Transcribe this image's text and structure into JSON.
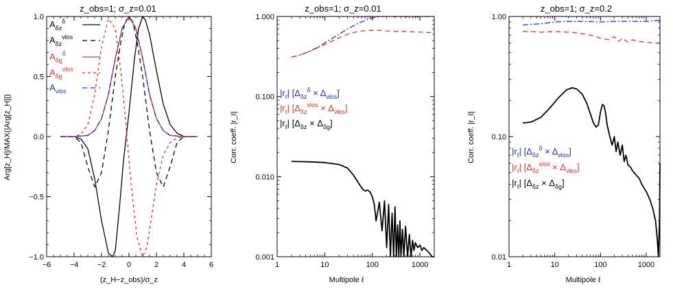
{
  "colors": {
    "black": "#000000",
    "red": "#e8302a",
    "blue": "#1f2bd6"
  },
  "chart_data": [
    {
      "type": "line",
      "title": "z_obs=1; σ_z=0.01",
      "xlabel": "(z_H−z_obs)/σ_z",
      "ylabel": "Arg[z_H]/MAX(|Arg[z_H]|)",
      "xlim": [
        -6,
        6
      ],
      "ylim": [
        -1.0,
        1.0
      ],
      "x_ticks": [
        "−6",
        "−4",
        "−2",
        "0",
        "2",
        "4",
        "6"
      ],
      "y_ticks": [
        "−1.0",
        "−0.5",
        "0.0",
        "0.5",
        "1.0"
      ],
      "legend": [
        "A_δz^δ",
        "A_δz^vlos",
        "A_δg^δ",
        "A_δg^vlos",
        "A_vlos"
      ],
      "series": [
        {
          "name": "A_δz^δ",
          "color": "black",
          "dash": "solid",
          "x": [
            -5,
            -4,
            -3.5,
            -3,
            -2.5,
            -2,
            -1.5,
            -1.2,
            -1,
            -0.7,
            -0.4,
            0,
            0.4,
            0.7,
            1,
            1.2,
            1.5,
            2,
            2.5,
            3,
            3.5,
            4,
            5
          ],
          "y": [
            0,
            0,
            -0.02,
            -0.1,
            -0.35,
            -0.7,
            -0.97,
            -1.0,
            -0.95,
            -0.6,
            -0.2,
            0.2,
            0.65,
            0.9,
            1.0,
            0.97,
            0.85,
            0.55,
            0.27,
            0.1,
            0.03,
            0,
            0
          ]
        },
        {
          "name": "A_δz^vlos",
          "color": "black",
          "dash": "long-dash",
          "x": [
            -5,
            -4,
            -3.5,
            -3,
            -2.5,
            -2,
            -1.5,
            -1,
            -0.6,
            -0.3,
            0,
            0.3,
            0.6,
            1,
            1.5,
            2,
            2.5,
            3,
            3.5,
            4,
            5
          ],
          "y": [
            0,
            0,
            -0.05,
            -0.25,
            -0.42,
            -0.3,
            0.05,
            0.5,
            0.78,
            0.95,
            1.0,
            0.95,
            0.78,
            0.5,
            0.05,
            -0.3,
            -0.42,
            -0.25,
            -0.05,
            0,
            0
          ]
        },
        {
          "name": "A_δg^δ",
          "color": "red",
          "dash": "solid",
          "x": [
            -5,
            -4,
            -3,
            -2.5,
            -2,
            -1.5,
            -1,
            -0.5,
            0,
            0.5,
            1,
            1.5,
            2,
            2.5,
            3,
            4,
            5
          ],
          "y": [
            0,
            0,
            0.01,
            0.05,
            0.15,
            0.35,
            0.65,
            0.9,
            1.0,
            0.9,
            0.65,
            0.35,
            0.15,
            0.05,
            0.01,
            0,
            0
          ]
        },
        {
          "name": "A_δg^vlos",
          "color": "red",
          "dash": "short-dash",
          "x": [
            -5,
            -4,
            -3.5,
            -3,
            -2.5,
            -2,
            -1.5,
            -1,
            -0.6,
            -0.3,
            0,
            0.3,
            0.6,
            1,
            1.3,
            1.6,
            2,
            2.5,
            3,
            3.5,
            4,
            5
          ],
          "y": [
            0,
            0,
            0.02,
            0.1,
            0.35,
            0.75,
            0.98,
            0.9,
            0.55,
            0.2,
            -0.2,
            -0.55,
            -0.85,
            -1.0,
            -0.92,
            -0.7,
            -0.4,
            -0.15,
            -0.05,
            -0.01,
            0,
            0
          ]
        },
        {
          "name": "A_vlos",
          "color": "blue",
          "dash": "long-dash",
          "x": [
            -5,
            -4,
            -3,
            -2.5,
            -2,
            -1.5,
            -1,
            -0.5,
            0,
            0.5,
            1,
            1.5,
            2,
            2.5,
            3,
            4,
            5
          ],
          "y": [
            0,
            0,
            0.01,
            0.05,
            0.15,
            0.35,
            0.65,
            0.9,
            1.0,
            0.9,
            0.65,
            0.35,
            0.15,
            0.05,
            0.01,
            0,
            0
          ]
        }
      ]
    },
    {
      "type": "line",
      "title": "z_obs=1; σ_z=0.01",
      "xlabel": "Multipole ℓ",
      "ylabel": "Corr. coeff. |r_ℓ|",
      "x_scale": "log",
      "y_scale": "log",
      "xlim": [
        1,
        2000
      ],
      "ylim": [
        0.001,
        1.0
      ],
      "x_ticks": [
        "1",
        "10",
        "100",
        "1000"
      ],
      "y_ticks": [
        "0.001",
        "0.010",
        "0.100",
        "1.000"
      ],
      "legend": [
        "|r_ℓ| [Δ_δz^δ × Δ_vlos]",
        "|r_ℓ| [Δ_δz^vlos × Δ_vlos]",
        "|r_ℓ| [Δ_δz × Δ_δg]"
      ],
      "series": [
        {
          "name": "|r_ℓ| [Δ_δz^δ × Δ_vlos]",
          "color": "blue",
          "dash": "dash-dot",
          "x": [
            2,
            3,
            5,
            8,
            12,
            20,
            30,
            50,
            80,
            100,
            150,
            200,
            300,
            500,
            800,
            1000,
            1500,
            2000
          ],
          "y": [
            0.31,
            0.33,
            0.37,
            0.43,
            0.5,
            0.6,
            0.7,
            0.82,
            0.92,
            0.96,
            1.0,
            1.02,
            1.03,
            1.03,
            1.04,
            1.04,
            1.04,
            1.04
          ]
        },
        {
          "name": "|r_ℓ| [Δ_δz^vlos × Δ_vlos]",
          "color": "red",
          "dash": "long-dash",
          "x": [
            2,
            3,
            5,
            8,
            12,
            20,
            30,
            50,
            80,
            100,
            150,
            200,
            300,
            500,
            800,
            1000,
            1500,
            2000
          ],
          "y": [
            0.31,
            0.33,
            0.37,
            0.42,
            0.47,
            0.54,
            0.6,
            0.65,
            0.67,
            0.67,
            0.67,
            0.66,
            0.65,
            0.65,
            0.64,
            0.64,
            0.63,
            0.63
          ]
        },
        {
          "name": "|r_ℓ| [Δ_δz × Δ_δg]",
          "color": "black",
          "dash": "solid",
          "x": [
            2,
            5,
            10,
            20,
            30,
            40,
            50,
            60,
            70,
            80,
            90,
            100,
            110,
            120,
            140,
            160,
            180,
            200,
            220,
            240,
            260,
            280,
            300,
            320,
            340,
            360,
            380,
            400,
            430,
            460,
            500,
            550,
            600,
            650,
            700,
            750,
            800,
            900,
            1000,
            1100,
            1200,
            1400,
            1600,
            1800,
            2000
          ],
          "y": [
            0.0155,
            0.0153,
            0.015,
            0.0142,
            0.0128,
            0.0105,
            0.0085,
            0.0072,
            0.0066,
            0.0068,
            0.0064,
            0.0056,
            0.0045,
            0.0028,
            0.0048,
            0.0021,
            0.005,
            0.0013,
            0.0045,
            0.001,
            0.0035,
            0.001,
            0.0042,
            0.001,
            0.0025,
            0.001,
            0.0028,
            0.001,
            0.0022,
            0.001,
            0.0024,
            0.001,
            0.0019,
            0.001,
            0.0016,
            0.0012,
            0.0015,
            0.0013,
            0.0014,
            0.0012,
            0.0013,
            0.0012,
            0.0011,
            0.001,
            0.001
          ]
        }
      ]
    },
    {
      "type": "line",
      "title": "z_obs=1; σ_z=0.2",
      "xlabel": "Multipole ℓ",
      "ylabel": "Corr. coeff. |r_ℓ|",
      "x_scale": "log",
      "y_scale": "log",
      "xlim": [
        1,
        2000
      ],
      "ylim": [
        0.01,
        1.0
      ],
      "x_ticks": [
        "1",
        "10",
        "100",
        "1000"
      ],
      "y_ticks": [
        "0.01",
        "0.10",
        "1.00"
      ],
      "legend": [
        "|r_ℓ| [Δ_δz^δ × Δ_vlos]",
        "|r_ℓ| [Δ_δz^vlos × Δ_vlos]",
        "|r_ℓ| [Δ_δz × Δ_δg]"
      ],
      "series": [
        {
          "name": "|r_ℓ| [Δ_δz^δ × Δ_vlos]",
          "color": "blue",
          "dash": "dash-dot",
          "x": [
            2,
            3,
            5,
            8,
            10,
            20,
            50,
            100,
            200,
            500,
            1000,
            2000
          ],
          "y": [
            0.85,
            0.86,
            0.87,
            0.89,
            0.9,
            0.91,
            0.91,
            0.9,
            0.91,
            0.91,
            0.91,
            0.93
          ]
        },
        {
          "name": "|r_ℓ| [Δ_δz^vlos × Δ_vlos]",
          "color": "red",
          "dash": "long-dash",
          "x": [
            2,
            3,
            5,
            10,
            20,
            30,
            50,
            80,
            100,
            150,
            200,
            250,
            300,
            400,
            500,
            700,
            1000,
            1500,
            2000
          ],
          "y": [
            0.75,
            0.75,
            0.74,
            0.75,
            0.74,
            0.73,
            0.71,
            0.68,
            0.66,
            0.64,
            0.68,
            0.62,
            0.66,
            0.61,
            0.64,
            0.62,
            0.61,
            0.6,
            0.6
          ]
        },
        {
          "name": "|r_ℓ| [Δ_δz × Δ_δg]",
          "color": "black",
          "dash": "solid",
          "x": [
            2,
            3,
            5,
            8,
            12,
            18,
            24,
            30,
            40,
            50,
            60,
            70,
            80,
            90,
            100,
            110,
            120,
            130,
            140,
            160,
            180,
            200,
            220,
            240,
            270,
            300,
            330,
            360,
            400,
            450,
            500,
            600,
            700,
            800,
            1000,
            1200,
            1400,
            1600,
            1750,
            1850,
            1950,
            2000
          ],
          "y": [
            0.13,
            0.132,
            0.145,
            0.175,
            0.21,
            0.245,
            0.255,
            0.25,
            0.225,
            0.19,
            0.155,
            0.13,
            0.12,
            0.125,
            0.16,
            0.185,
            0.18,
            0.155,
            0.125,
            0.1,
            0.085,
            0.1,
            0.075,
            0.09,
            0.07,
            0.085,
            0.062,
            0.07,
            0.058,
            0.056,
            0.052,
            0.048,
            0.045,
            0.04,
            0.035,
            0.03,
            0.025,
            0.02,
            0.014,
            0.01,
            0.02,
            0.06
          ]
        }
      ]
    }
  ]
}
